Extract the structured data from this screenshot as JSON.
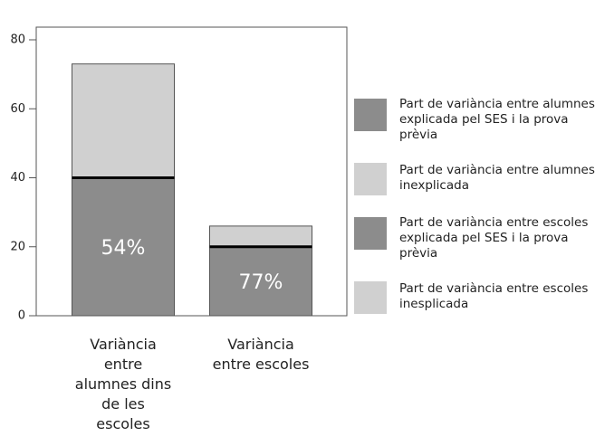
{
  "chart_data": {
    "type": "stacked_bar",
    "categories": [
      "Variància entre alumnes dins de les escoles",
      "Variància entre escoles"
    ],
    "series": [
      {
        "name": "Part de variància entre alumnes explicada pel SES i la prova prèvia",
        "color": "#8c8c8c",
        "values": [
          40,
          null
        ]
      },
      {
        "name": "Part de variància entre alumnes inexplicada",
        "color": "#d0d0d0",
        "values": [
          33,
          null
        ]
      },
      {
        "name": "Part de variància entre escoles explicada pel SES i la prova prèvia",
        "color": "#8c8c8c",
        "values": [
          null,
          20
        ]
      },
      {
        "name": "Part de variància entre escoles inesplicada",
        "color": "#d0d0d0",
        "values": [
          null,
          6
        ]
      }
    ],
    "annotations": [
      "54%",
      "77%"
    ],
    "ylim": [
      0,
      80
    ],
    "yticks": [
      0,
      20,
      40,
      60,
      80
    ],
    "legend": "right"
  }
}
